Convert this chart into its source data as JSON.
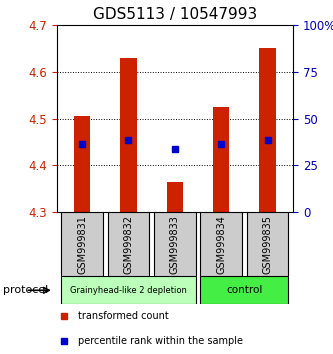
{
  "title": "GDS5113 / 10547993",
  "samples": [
    "GSM999831",
    "GSM999832",
    "GSM999833",
    "GSM999834",
    "GSM999835"
  ],
  "bar_bottom": [
    4.3,
    4.3,
    4.3,
    4.3,
    4.3
  ],
  "bar_top": [
    4.505,
    4.63,
    4.365,
    4.525,
    4.65
  ],
  "blue_y": [
    4.445,
    4.455,
    4.435,
    4.445,
    4.455
  ],
  "ylim": [
    4.3,
    4.7
  ],
  "yticks_left": [
    4.3,
    4.4,
    4.5,
    4.6,
    4.7
  ],
  "yticks_right_labels": [
    "0",
    "25",
    "50",
    "75",
    "100%"
  ],
  "yticks_right_vals": [
    0,
    25,
    50,
    75,
    100
  ],
  "bar_color": "#cc2200",
  "blue_color": "#0000cc",
  "bar_width": 0.35,
  "groups": [
    {
      "label": "Grainyhead-like 2 depletion",
      "indices": [
        0,
        1,
        2
      ],
      "color": "#bbffbb"
    },
    {
      "label": "control",
      "indices": [
        3,
        4
      ],
      "color": "#44ee44"
    }
  ],
  "group_label": "protocol",
  "legend_red": "transformed count",
  "legend_blue": "percentile rank within the sample",
  "bg_color": "#ffffff",
  "tick_label_color_left": "#cc2200",
  "tick_label_color_right": "#0000bb",
  "title_fontsize": 11,
  "tick_fontsize": 8.5,
  "sample_label_color": "#cccccc",
  "sample_fontsize": 7
}
